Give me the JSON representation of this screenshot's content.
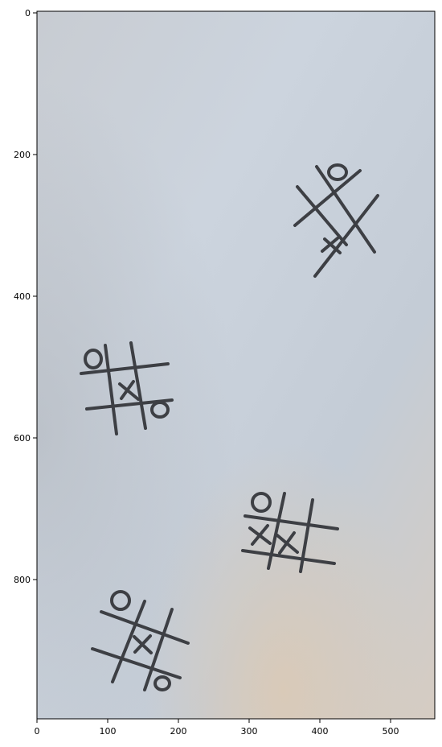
{
  "axes": {
    "x_ticks": [
      "0",
      "100",
      "200",
      "300",
      "400",
      "500"
    ],
    "y_ticks": [
      "0",
      "200",
      "400",
      "600",
      "800"
    ]
  },
  "photo": {
    "subject": "paper-with-tic-tac-toe-sketches",
    "background_color": "#c9d0d8",
    "ink_color": "#3d3f44"
  }
}
